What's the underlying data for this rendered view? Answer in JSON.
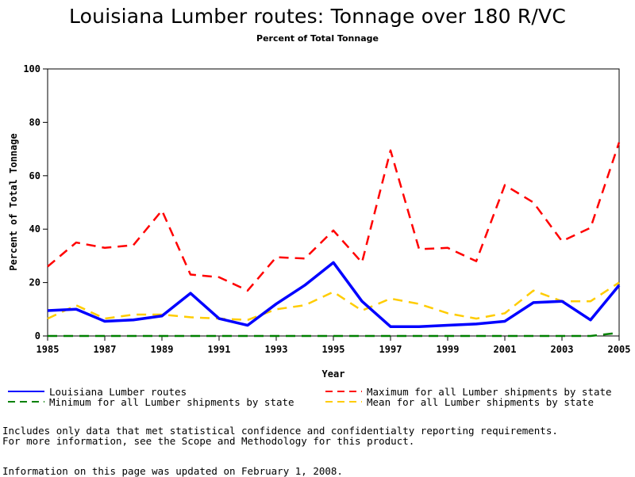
{
  "title": "Louisiana Lumber routes: Tonnage over 180 R/VC",
  "subtitle": "Percent of Total Tonnage",
  "chart_data": {
    "type": "line",
    "xlabel": "Year",
    "ylabel": "Percent of Total Tonnage",
    "xlim": [
      1985,
      2005
    ],
    "ylim": [
      0,
      100
    ],
    "x": [
      1985,
      1986,
      1987,
      1988,
      1989,
      1990,
      1991,
      1992,
      1993,
      1994,
      1995,
      1996,
      1997,
      1998,
      1999,
      2000,
      2001,
      2002,
      2003,
      2004,
      2005
    ],
    "x_ticks": [
      "1985",
      "1987",
      "1989",
      "1991",
      "1993",
      "1995",
      "1997",
      "1999",
      "2001",
      "2003",
      "2005"
    ],
    "y_ticks": [
      "0",
      "20",
      "40",
      "60",
      "80",
      "100"
    ],
    "grid": false,
    "legend_position": "bottom",
    "series": [
      {
        "name": "Louisiana Lumber routes",
        "color": "#0000ff",
        "style": "solid",
        "values": [
          9.5,
          10,
          5.5,
          6,
          7.5,
          16,
          6.5,
          4,
          12,
          19,
          27.5,
          13,
          3.5,
          3.5,
          4,
          4.5,
          5.5,
          12.5,
          13,
          6,
          19
        ]
      },
      {
        "name": "Maximum for all Lumber shipments by state",
        "color": "#ff0000",
        "style": "dashed",
        "values": [
          26,
          35,
          33,
          34,
          47,
          23,
          22,
          17,
          29.5,
          29,
          39.5,
          27.5,
          69.5,
          32.5,
          33,
          28,
          56.5,
          50,
          35.5,
          40.5,
          72.5
        ]
      },
      {
        "name": "Minimum for all Lumber shipments by state",
        "color": "#008000",
        "style": "dashed",
        "values": [
          0,
          0,
          0,
          0,
          0,
          0,
          0,
          0,
          0,
          0,
          0,
          0,
          0,
          0,
          0,
          0,
          0,
          0,
          0,
          0,
          1.2
        ]
      },
      {
        "name": "Mean for all Lumber shipments by state",
        "color": "#ffcc00",
        "style": "dashed",
        "values": [
          6.5,
          11.5,
          6.5,
          8,
          8,
          7,
          6.5,
          6,
          10,
          11.5,
          16.5,
          9.5,
          14,
          12,
          8.5,
          6.5,
          8.5,
          17,
          13,
          13,
          20
        ]
      }
    ]
  },
  "notes": {
    "line1": "Includes only data that met statistical confidence and confidentialty reporting requirements.",
    "line2": "For more information, see the Scope and Methodology for this product.",
    "updated": "Information on this page was updated on February 1, 2008."
  }
}
